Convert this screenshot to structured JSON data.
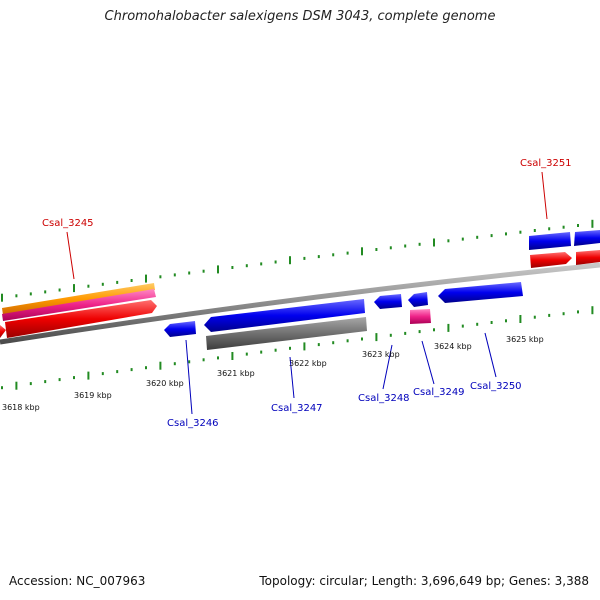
{
  "title": "Chromohalobacter salexigens DSM 3043, complete genome",
  "footer": {
    "accession": "Accession: NC_007963",
    "summary": "Topology: circular; Length: 3,696,649 bp; Genes: 3,388"
  },
  "colors": {
    "backbone": "#8c8c8c",
    "tick": "#228b22",
    "plus_label": "#cc0000",
    "minus_label": "#0000bb",
    "red": "#ff0000",
    "pink": "#ff3399",
    "orange": "#ff9900",
    "blue": "#0000ff",
    "gray": "#7a7a7a"
  },
  "kbp_labels": [
    "3618 kbp",
    "3619 kbp",
    "3620 kbp",
    "3621 kbp",
    "3622 kbp",
    "3623 kbp",
    "3624 kbp",
    "3625 kbp"
  ],
  "gene_labels": [
    "Csal_3245",
    "Csal_3246",
    "Csal_3247",
    "Csal_3248",
    "Csal_3249",
    "Csal_3250",
    "Csal_3251"
  ]
}
